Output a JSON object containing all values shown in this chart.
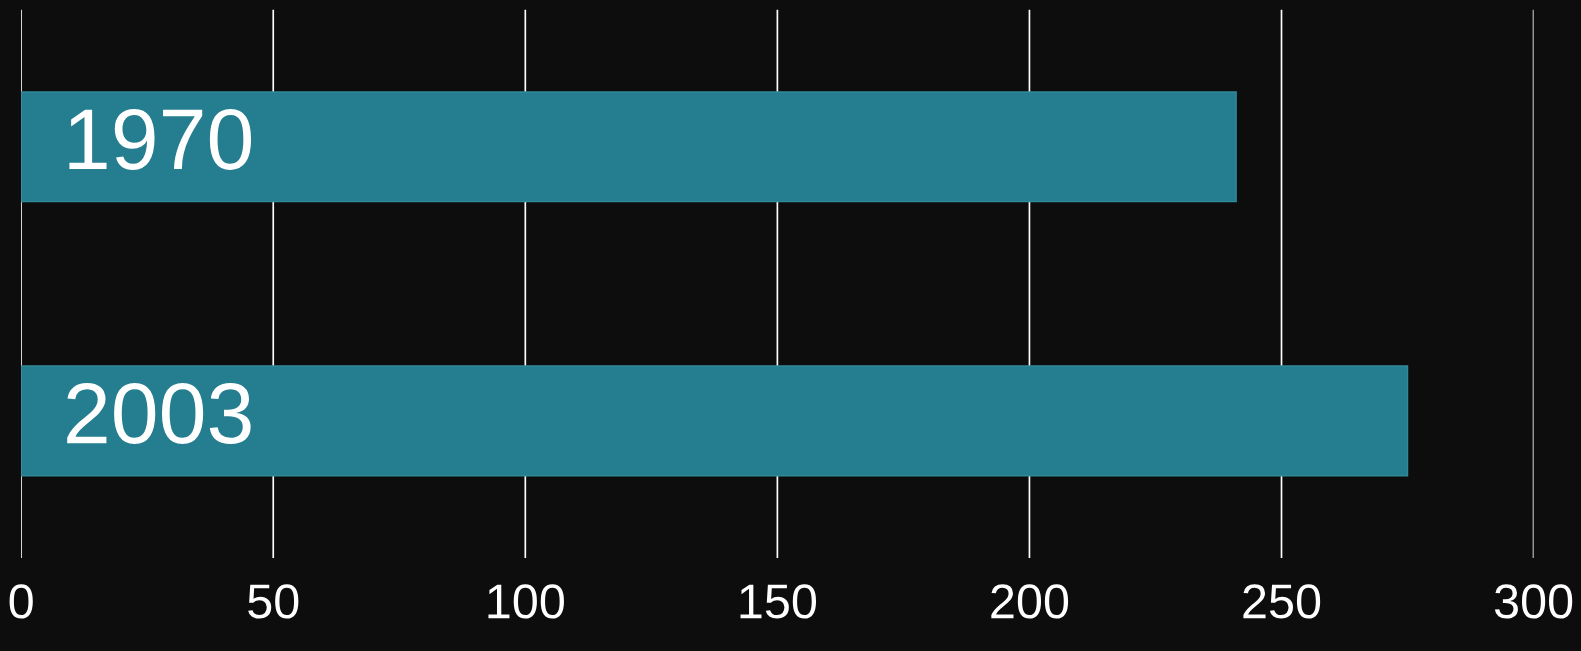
{
  "chart_data": {
    "type": "bar",
    "orientation": "horizontal",
    "categories": [
      "1970",
      "2003"
    ],
    "values": [
      241,
      275
    ],
    "color": "#247e8f",
    "xlim": [
      0,
      300
    ],
    "xticks": [
      0,
      50,
      100,
      150,
      200,
      250,
      300
    ],
    "grid": "x"
  }
}
